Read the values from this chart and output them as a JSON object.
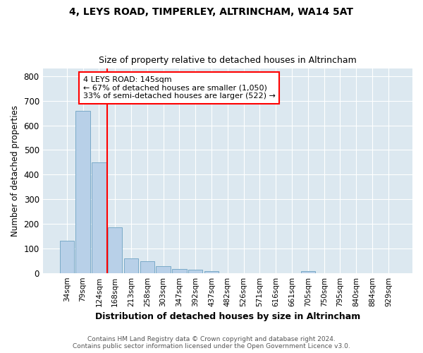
{
  "title": "4, LEYS ROAD, TIMPERLEY, ALTRINCHAM, WA14 5AT",
  "subtitle": "Size of property relative to detached houses in Altrincham",
  "xlabel": "Distribution of detached houses by size in Altrincham",
  "ylabel": "Number of detached properties",
  "categories": [
    "34sqm",
    "79sqm",
    "124sqm",
    "168sqm",
    "213sqm",
    "258sqm",
    "303sqm",
    "347sqm",
    "392sqm",
    "437sqm",
    "482sqm",
    "526sqm",
    "571sqm",
    "616sqm",
    "661sqm",
    "705sqm",
    "750sqm",
    "795sqm",
    "840sqm",
    "884sqm",
    "929sqm"
  ],
  "values": [
    130,
    660,
    450,
    185,
    60,
    48,
    28,
    15,
    12,
    8,
    0,
    0,
    0,
    0,
    0,
    8,
    0,
    0,
    0,
    0,
    0
  ],
  "bar_color": "#b8d0e8",
  "bar_edge_color": "#7aaac8",
  "vline_x_index": 2.5,
  "vline_color": "red",
  "annotation_text": "4 LEYS ROAD: 145sqm\n← 67% of detached houses are smaller (1,050)\n33% of semi-detached houses are larger (522) →",
  "annotation_box_color": "white",
  "annotation_box_edge": "red",
  "ylim": [
    0,
    830
  ],
  "yticks": [
    0,
    100,
    200,
    300,
    400,
    500,
    600,
    700,
    800
  ],
  "footer": "Contains HM Land Registry data © Crown copyright and database right 2024.\nContains public sector information licensed under the Open Government Licence v3.0.",
  "plot_bg_color": "#dce8f0",
  "fig_bg_color": "#ffffff"
}
